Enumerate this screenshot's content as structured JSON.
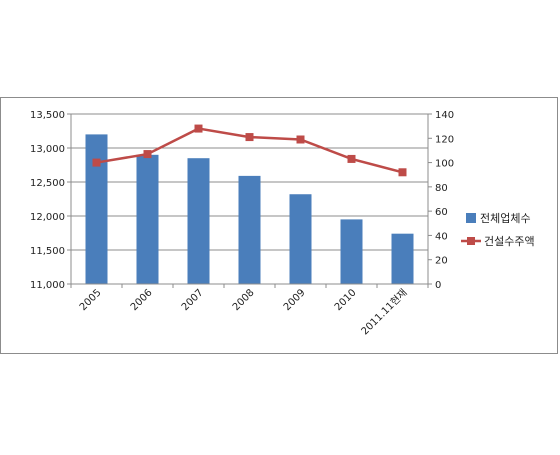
{
  "chart_data": {
    "type": "bar",
    "categories": [
      "2005",
      "2006",
      "2007",
      "2008",
      "2009",
      "2010",
      "2011.11현재"
    ],
    "series": [
      {
        "name": "전체업체수",
        "type": "bar",
        "axis": "left",
        "color": "#4a7ebb",
        "values": [
          13200,
          12900,
          12850,
          12590,
          12320,
          11950,
          11740
        ]
      },
      {
        "name": "건설수주액",
        "type": "line",
        "axis": "right",
        "color": "#be4b48",
        "values": [
          100,
          107,
          128,
          121,
          119,
          103,
          92
        ]
      }
    ],
    "y_left": {
      "ylim": [
        11000,
        13500
      ],
      "ticks": [
        "11,000",
        "11,500",
        "12,000",
        "12,500",
        "13,000",
        "13,500"
      ]
    },
    "y_right": {
      "ylim": [
        0,
        140
      ],
      "ticks": [
        "0",
        "20",
        "40",
        "60",
        "80",
        "100",
        "120",
        "140"
      ]
    },
    "grid": true,
    "legend_position": "right"
  }
}
